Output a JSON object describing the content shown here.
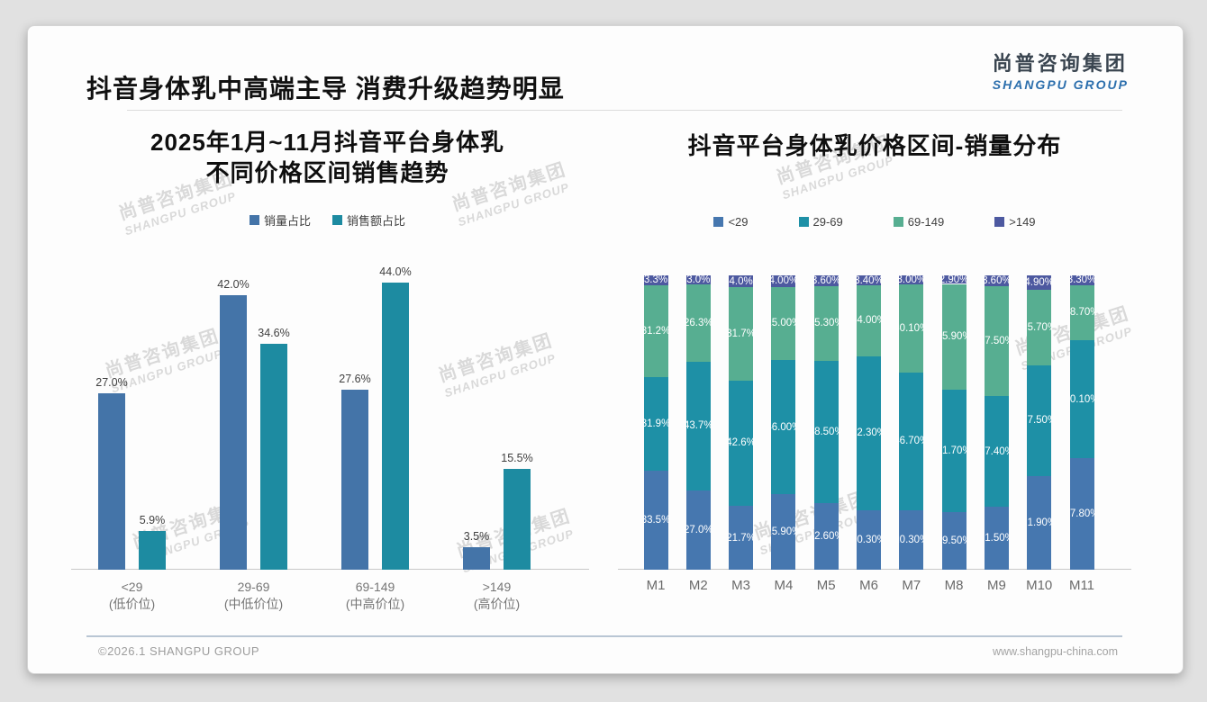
{
  "header": {
    "title": "抖音身体乳中高端主导 消费升级趋势明显",
    "logo_cn": "尚普咨询集团",
    "logo_en": "SHANGPU GROUP"
  },
  "watermark": {
    "cn": "尚普咨询集团",
    "en": "SHANGPU GROUP"
  },
  "footer": {
    "copyright": "©2026.1 SHANGPU GROUP",
    "website": "www.shangpu-china.com"
  },
  "colors": {
    "volume_blue": "#4474a8",
    "revenue_teal": "#1d8ba1",
    "stack_lt29_blue": "#4677af",
    "stack_29_69_teal": "#1e90a6",
    "stack_69_149_green": "#57ae91",
    "stack_gt149_slate": "#4d59a0",
    "axis_gray": "#c8c8c8"
  },
  "chart_data": [
    {
      "id": "price-band-sales-trend",
      "type": "bar",
      "title_lines": [
        "2025年1月~11月抖音平台身体乳",
        "不同价格区间销售趋势"
      ],
      "xlabel": "",
      "ylabel": "",
      "ylim": [
        0,
        46
      ],
      "grid": false,
      "legend_position": "top",
      "categories": [
        {
          "range": "<29",
          "tier": "(低价位)"
        },
        {
          "range": "29-69",
          "tier": "(中低价位)"
        },
        {
          "range": "69-149",
          "tier": "(中高价位)"
        },
        {
          "range": ">149",
          "tier": "(高价位)"
        }
      ],
      "series": [
        {
          "name": "销量占比",
          "color": "#4474a8",
          "values": [
            27.0,
            42.0,
            27.6,
            3.5
          ],
          "labels": [
            "27.0%",
            "42.0%",
            "27.6%",
            "3.5%"
          ]
        },
        {
          "name": "销售额占比",
          "color": "#1d8ba1",
          "values": [
            5.9,
            34.6,
            44.0,
            15.5
          ],
          "labels": [
            "5.9%",
            "34.6%",
            "44.0%",
            "15.5%"
          ]
        }
      ]
    },
    {
      "id": "price-band-volume-distribution",
      "type": "stacked-bar-100",
      "title": "抖音平台身体乳价格区间-销量分布",
      "xlabel": "",
      "ylabel": "",
      "ylim": [
        0,
        100
      ],
      "grid": false,
      "legend_position": "top",
      "categories": [
        "M1",
        "M2",
        "M3",
        "M4",
        "M5",
        "M6",
        "M7",
        "M8",
        "M9",
        "M10",
        "M11"
      ],
      "series": [
        {
          "name": "<29",
          "color": "#4677af",
          "values": [
            33.5,
            27.0,
            21.7,
            25.9,
            22.6,
            20.3,
            20.3,
            19.5,
            21.5,
            31.9,
            37.8
          ],
          "labels": [
            "33.5%",
            "27.0%",
            "21.7%",
            "25.90%",
            "22.60%",
            "20.30%",
            "20.30%",
            "19.50%",
            "21.50%",
            "31.90%",
            "37.80%"
          ]
        },
        {
          "name": "29-69",
          "color": "#1e90a6",
          "values": [
            31.9,
            43.7,
            42.6,
            46.0,
            48.5,
            52.3,
            46.7,
            41.7,
            37.4,
            37.5,
            40.1
          ],
          "labels": [
            "31.9%",
            "43.7%",
            "42.6%",
            "46.00%",
            "48.50%",
            "52.30%",
            "46.70%",
            "41.70%",
            "37.40%",
            "37.50%",
            "40.10%"
          ]
        },
        {
          "name": "69-149",
          "color": "#57ae91",
          "values": [
            31.2,
            26.3,
            31.7,
            25.0,
            25.3,
            24.0,
            30.1,
            35.9,
            37.5,
            25.7,
            18.7
          ],
          "labels": [
            "31.2%",
            "26.3%",
            "31.7%",
            "25.00%",
            "25.30%",
            "24.00%",
            "30.10%",
            "35.90%",
            "37.50%",
            "25.70%",
            "18.70%"
          ]
        },
        {
          "name": ">149",
          "color": "#4d59a0",
          "values": [
            3.3,
            3.0,
            4.0,
            4.0,
            3.6,
            3.4,
            3.0,
            2.9,
            3.6,
            4.9,
            3.3
          ],
          "labels": [
            "3.3%",
            "3.0%",
            "4.0%",
            "4.00%",
            "3.60%",
            "3.40%",
            "3.00%",
            "2.90%",
            "3.60%",
            "4.90%",
            "3.30%"
          ]
        }
      ]
    }
  ]
}
